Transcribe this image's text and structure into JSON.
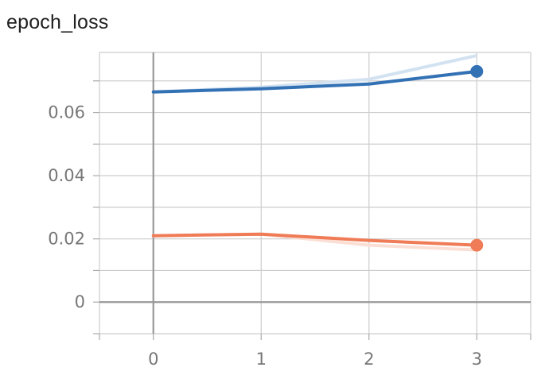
{
  "chart_data": {
    "type": "line",
    "title": "epoch_loss",
    "xlabel": "",
    "ylabel": "",
    "x": [
      0,
      1,
      2,
      3
    ],
    "xlim": [
      -0.5,
      3.5
    ],
    "ylim": [
      -0.01,
      0.079
    ],
    "xticks": [
      0,
      1,
      2,
      3
    ],
    "xtick_labels": [
      "0",
      "1",
      "2",
      "3"
    ],
    "yticks": [
      0,
      0.02,
      0.04,
      0.06
    ],
    "ytick_labels": [
      "0",
      "0.02",
      "0.04",
      "0.06"
    ],
    "grid": true,
    "legend": "none",
    "series": [
      {
        "color": "#3371b5",
        "raw_color": "#d2e2f1",
        "values": [
          0.0665,
          0.0675,
          0.069,
          0.073
        ],
        "raw_values": [
          0.0665,
          0.068,
          0.0705,
          0.078
        ]
      },
      {
        "color": "#ef7c57",
        "raw_color": "#fbdfd5",
        "values": [
          0.021,
          0.0215,
          0.0195,
          0.018
        ],
        "raw_values": [
          0.021,
          0.0215,
          0.018,
          0.0165
        ]
      }
    ]
  }
}
